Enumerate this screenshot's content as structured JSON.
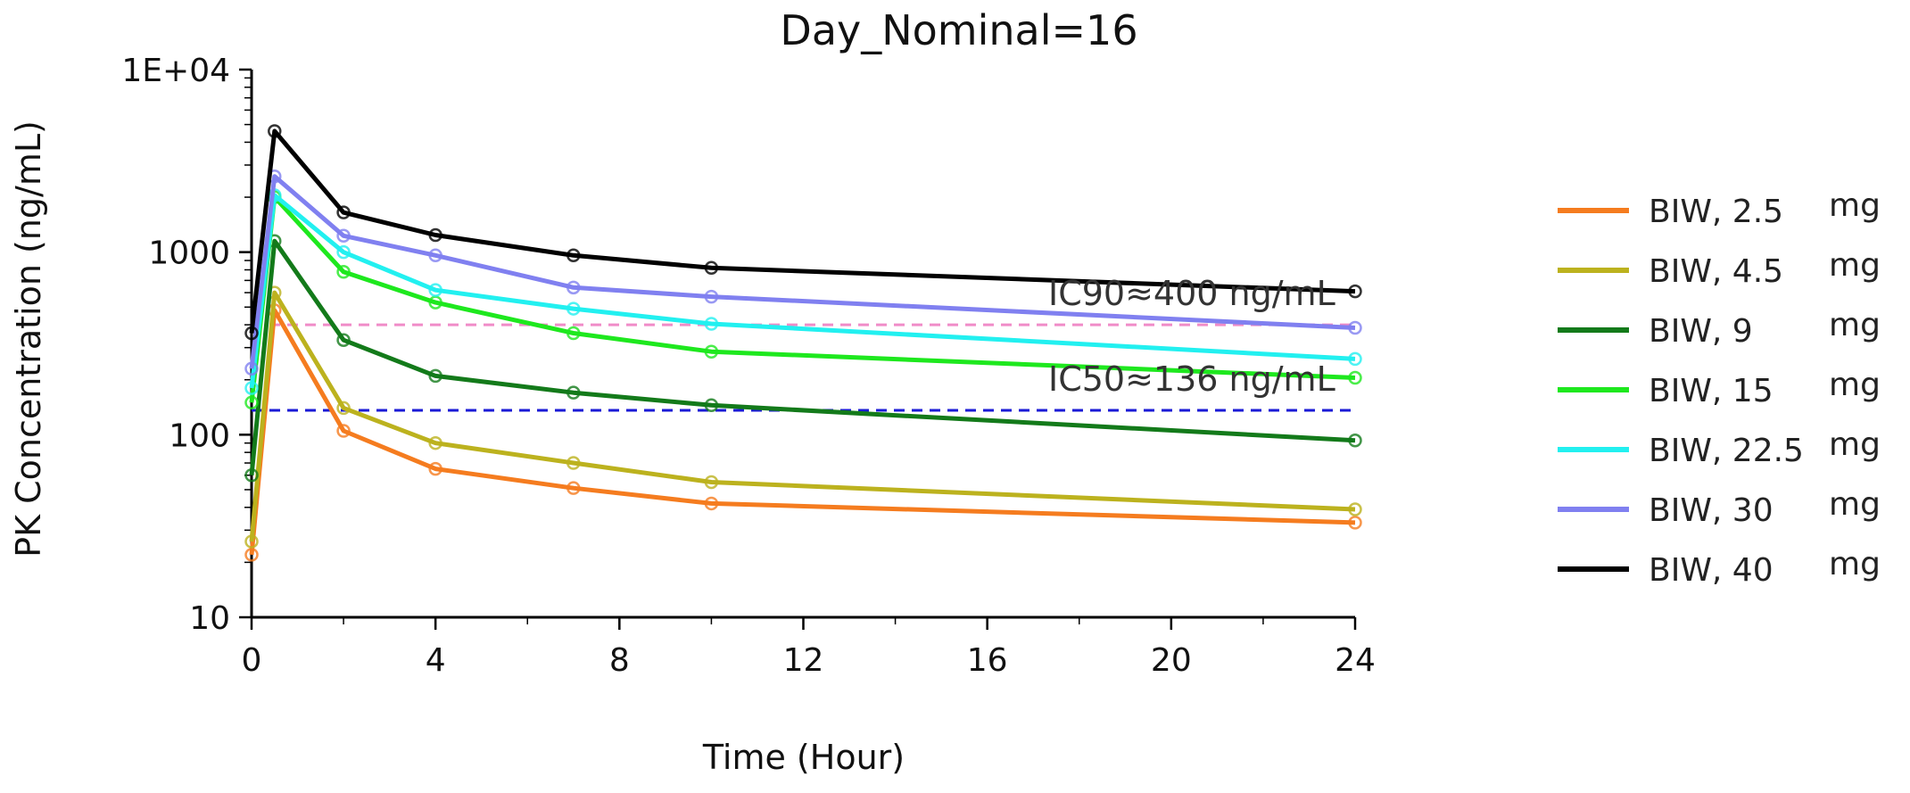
{
  "chart_data": {
    "type": "line",
    "title": "Day_Nominal=16",
    "xlabel": "Time (Hour)",
    "ylabel": "PK Concentration (ng/mL)",
    "yscale": "log",
    "xlim": [
      0,
      24
    ],
    "ylim": [
      10,
      10000
    ],
    "x_ticks": [
      0,
      4,
      8,
      12,
      16,
      20,
      24
    ],
    "y_ticks": [
      {
        "value": 10,
        "label": "10"
      },
      {
        "value": 100,
        "label": "100"
      },
      {
        "value": 1000,
        "label": "1000"
      },
      {
        "value": 10000,
        "label": "1E+04"
      }
    ],
    "x": [
      0,
      0.5,
      2,
      4,
      7,
      10,
      24
    ],
    "series": [
      {
        "name": "BIW, 2.5",
        "unit": "mg",
        "color": "#f57c1f",
        "values": [
          22,
          480,
          105,
          65,
          51,
          42,
          33
        ]
      },
      {
        "name": "BIW, 4.5",
        "unit": "mg",
        "color": "#bcb21e",
        "values": [
          26,
          600,
          140,
          90,
          70,
          55,
          39
        ]
      },
      {
        "name": "BIW, 9",
        "unit": "mg",
        "color": "#137a1a",
        "values": [
          60,
          1150,
          330,
          210,
          170,
          145,
          93
        ]
      },
      {
        "name": "BIW, 15",
        "unit": "mg",
        "color": "#1ee81e",
        "values": [
          150,
          2000,
          780,
          530,
          360,
          285,
          205
        ]
      },
      {
        "name": "BIW, 22.5",
        "unit": "mg",
        "color": "#22f0f0",
        "values": [
          180,
          2050,
          1000,
          620,
          490,
          405,
          260
        ]
      },
      {
        "name": "BIW, 30",
        "unit": "mg",
        "color": "#8080f0",
        "values": [
          230,
          2600,
          1230,
          960,
          640,
          570,
          385
        ]
      },
      {
        "name": "BIW, 40",
        "unit": "mg",
        "color": "#000000",
        "values": [
          360,
          4600,
          1650,
          1240,
          960,
          820,
          610
        ]
      }
    ],
    "reference_lines": [
      {
        "label": "IC90≈400 ng/mL",
        "value": 400,
        "color": "#f08cc8"
      },
      {
        "label": "IC50≈136 ng/mL",
        "value": 136,
        "color": "#1a1ad6"
      }
    ]
  }
}
